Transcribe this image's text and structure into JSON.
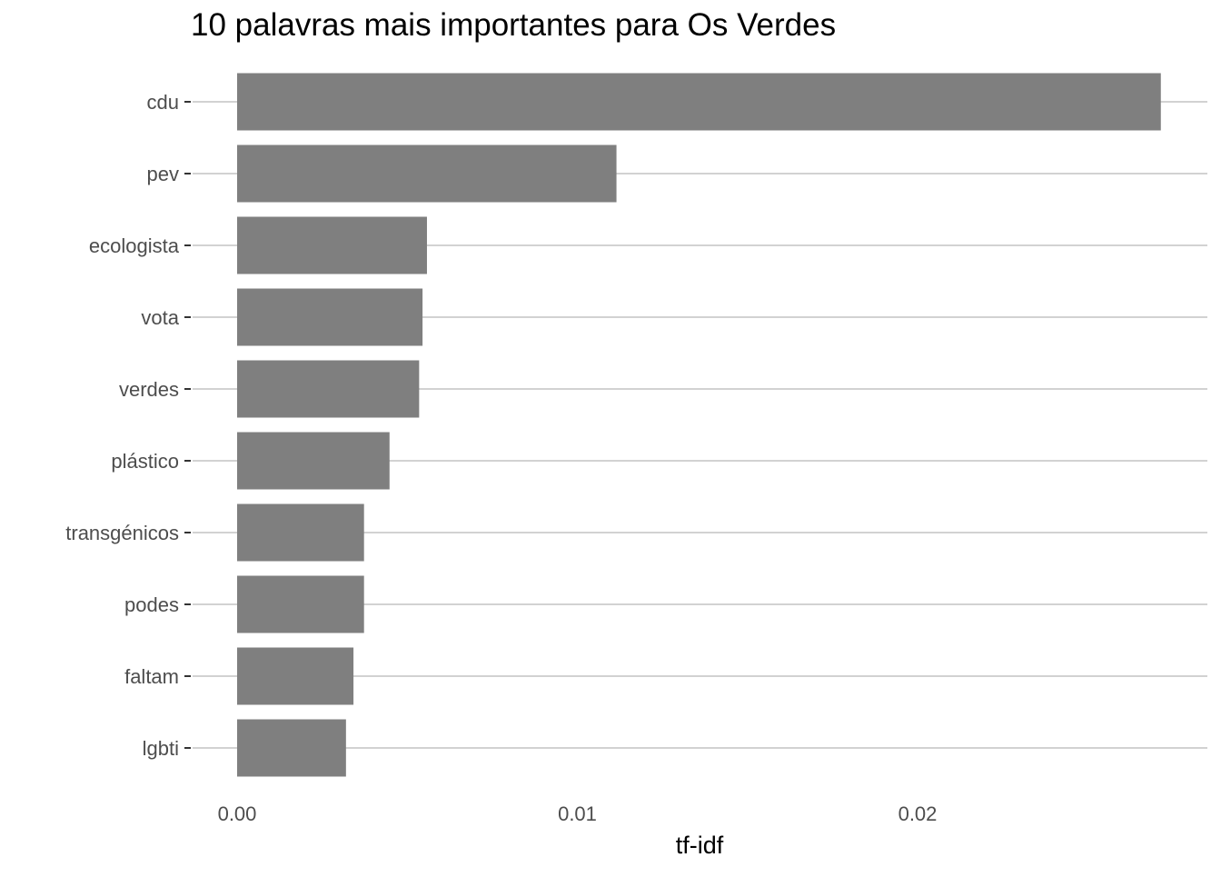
{
  "chart_data": {
    "type": "bar",
    "orientation": "horizontal",
    "title": "10 palavras mais importantes para Os Verdes",
    "xlabel": "tf-idf",
    "ylabel": "",
    "categories": [
      "cdu",
      "pev",
      "ecologista",
      "vota",
      "verdes",
      "plástico",
      "transgénicos",
      "podes",
      "faltam",
      "lgbti"
    ],
    "values": [
      0.02715,
      0.01115,
      0.00558,
      0.00545,
      0.00535,
      0.00448,
      0.00373,
      0.00373,
      0.00342,
      0.0032
    ],
    "xlim": [
      -0.0013,
      0.0285
    ],
    "xticks": [
      0,
      0.01,
      0.02
    ],
    "xtick_labels": [
      "0.00",
      "0.01",
      "0.02"
    ],
    "grid": "horizontal-major",
    "legend": "none",
    "colors": {
      "bar": "#7f7f7f",
      "grid": "#d2d2d2",
      "axis_text": "#4d4d4d",
      "title": "#000000"
    }
  }
}
